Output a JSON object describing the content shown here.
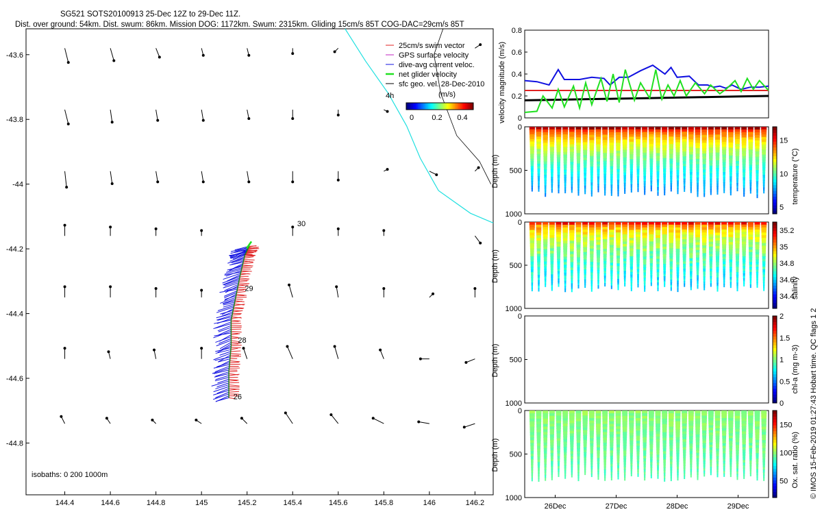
{
  "title": {
    "line1": "SG521 SOTS20100913 25-Dec 12Z to 29-Dec 11Z.",
    "line2": "Dist. over ground: 54km. Dist. swum: 86km. Mission DOG: 1172km. Swum: 2315km. Gliding 15cm/s 85T COG-DAC=29cm/s 85T"
  },
  "credit": "© IMOS 15-Feb-2019 01:27:43 Hobart time. QC flags 1  2",
  "colors": {
    "swim": "#e02020",
    "gps": "#c020c0",
    "dac": "#1010e0",
    "net": "#20e020",
    "geo": "#000000",
    "track": "#20e0e0",
    "axis": "#000000"
  },
  "chart_data": [
    {
      "type": "scatter",
      "id": "map",
      "title": "",
      "xlabel": "",
      "ylabel": "",
      "xlim": [
        144.23,
        146.28
      ],
      "ylim": [
        -44.96,
        -43.52
      ],
      "x_ticks": [
        "144.4",
        "144.6",
        "144.8",
        "145",
        "145.2",
        "145.4",
        "145.6",
        "145.8",
        "146",
        "146.2"
      ],
      "y_ticks": [
        "-43.6",
        "-43.8",
        "-44",
        "-44.2",
        "-44.4",
        "-44.6",
        "-44.8"
      ],
      "legend": {
        "position": "top-right",
        "items": [
          "25cm/s swim vector",
          "GPS surface velocity",
          "dive-avg current veloc.",
          "net glider velocity",
          "sfc geo. vel. 28-Dec-2010"
        ],
        "scale_label": "4h",
        "colorbar_title": "(m/s)",
        "colorbar_ticks": [
          "0",
          "0.2",
          "0.4"
        ]
      },
      "isobath_note": "isobaths: 0   200   1000m",
      "labels": [
        {
          "text": "30",
          "lon": 145.42,
          "lat": -44.13
        },
        {
          "text": "29",
          "lon": 145.19,
          "lat": -44.33
        },
        {
          "text": "28",
          "lon": 145.16,
          "lat": -44.49
        },
        {
          "text": "26",
          "lon": 145.14,
          "lat": -44.665
        }
      ],
      "track": [
        [
          145.12,
          -44.66
        ],
        [
          145.12,
          -44.58
        ],
        [
          145.13,
          -44.5
        ],
        [
          145.13,
          -44.42
        ],
        [
          145.15,
          -44.35
        ],
        [
          145.17,
          -44.28
        ],
        [
          145.19,
          -44.22
        ],
        [
          145.21,
          -44.19
        ]
      ],
      "geo_vectors": [
        {
          "lon": 144.4,
          "lat": -43.58,
          "u": 0.02,
          "v": -0.08
        },
        {
          "lon": 144.6,
          "lat": -43.58,
          "u": 0.02,
          "v": -0.07
        },
        {
          "lon": 144.8,
          "lat": -43.58,
          "u": 0.02,
          "v": -0.05
        },
        {
          "lon": 145.0,
          "lat": -43.58,
          "u": 0.01,
          "v": -0.04
        },
        {
          "lon": 145.2,
          "lat": -43.58,
          "u": 0.01,
          "v": -0.04
        },
        {
          "lon": 145.4,
          "lat": -43.58,
          "u": 0.0,
          "v": -0.03
        },
        {
          "lon": 145.6,
          "lat": -43.58,
          "u": -0.02,
          "v": -0.02
        },
        {
          "lon": 146.2,
          "lat": -43.58,
          "u": 0.03,
          "v": 0.02
        },
        {
          "lon": 144.4,
          "lat": -43.77,
          "u": 0.02,
          "v": -0.08
        },
        {
          "lon": 144.6,
          "lat": -43.77,
          "u": 0.01,
          "v": -0.07
        },
        {
          "lon": 144.8,
          "lat": -43.77,
          "u": 0.01,
          "v": -0.06
        },
        {
          "lon": 145.0,
          "lat": -43.77,
          "u": 0.01,
          "v": -0.06
        },
        {
          "lon": 145.2,
          "lat": -43.77,
          "u": 0.01,
          "v": -0.05
        },
        {
          "lon": 145.4,
          "lat": -43.77,
          "u": 0.0,
          "v": -0.05
        },
        {
          "lon": 145.6,
          "lat": -43.77,
          "u": 0.0,
          "v": -0.03
        },
        {
          "lon": 145.8,
          "lat": -43.77,
          "u": 0.02,
          "v": -0.01
        },
        {
          "lon": 144.4,
          "lat": -43.96,
          "u": 0.01,
          "v": -0.09
        },
        {
          "lon": 144.6,
          "lat": -43.96,
          "u": 0.01,
          "v": -0.07
        },
        {
          "lon": 144.8,
          "lat": -43.96,
          "u": 0.01,
          "v": -0.06
        },
        {
          "lon": 145.0,
          "lat": -43.96,
          "u": 0.01,
          "v": -0.06
        },
        {
          "lon": 145.2,
          "lat": -43.96,
          "u": 0.01,
          "v": -0.06
        },
        {
          "lon": 145.4,
          "lat": -43.96,
          "u": 0.0,
          "v": -0.06
        },
        {
          "lon": 145.6,
          "lat": -43.96,
          "u": 0.0,
          "v": -0.05
        },
        {
          "lon": 145.8,
          "lat": -43.96,
          "u": 0.02,
          "v": 0.01
        },
        {
          "lon": 146.0,
          "lat": -43.96,
          "u": 0.04,
          "v": -0.02
        },
        {
          "lon": 146.2,
          "lat": -43.96,
          "u": 0.02,
          "v": 0.02
        },
        {
          "lon": 144.4,
          "lat": -44.16,
          "u": 0.0,
          "v": 0.06
        },
        {
          "lon": 144.6,
          "lat": -44.16,
          "u": 0.0,
          "v": 0.05
        },
        {
          "lon": 144.8,
          "lat": -44.16,
          "u": 0.0,
          "v": 0.04
        },
        {
          "lon": 145.0,
          "lat": -44.16,
          "u": 0.0,
          "v": 0.03
        },
        {
          "lon": 145.4,
          "lat": -44.16,
          "u": 0.0,
          "v": 0.05
        },
        {
          "lon": 145.6,
          "lat": -44.16,
          "u": 0.0,
          "v": 0.04
        },
        {
          "lon": 145.8,
          "lat": -44.16,
          "u": 0.0,
          "v": 0.03
        },
        {
          "lon": 146.2,
          "lat": -44.16,
          "u": 0.03,
          "v": -0.04
        },
        {
          "lon": 144.4,
          "lat": -44.35,
          "u": 0.0,
          "v": 0.06
        },
        {
          "lon": 144.6,
          "lat": -44.35,
          "u": 0.0,
          "v": 0.06
        },
        {
          "lon": 144.8,
          "lat": -44.35,
          "u": 0.0,
          "v": 0.05
        },
        {
          "lon": 145.0,
          "lat": -44.35,
          "u": 0.0,
          "v": 0.04
        },
        {
          "lon": 145.4,
          "lat": -44.35,
          "u": -0.02,
          "v": 0.07
        },
        {
          "lon": 145.6,
          "lat": -44.35,
          "u": -0.01,
          "v": 0.06
        },
        {
          "lon": 145.8,
          "lat": -44.35,
          "u": 0.0,
          "v": 0.05
        },
        {
          "lon": 146.0,
          "lat": -44.35,
          "u": 0.02,
          "v": 0.02
        },
        {
          "lon": 146.2,
          "lat": -44.35,
          "u": 0.0,
          "v": 0.05
        },
        {
          "lon": 144.4,
          "lat": -44.54,
          "u": 0.0,
          "v": 0.06
        },
        {
          "lon": 144.6,
          "lat": -44.54,
          "u": -0.01,
          "v": 0.04
        },
        {
          "lon": 144.8,
          "lat": -44.54,
          "u": -0.01,
          "v": 0.05
        },
        {
          "lon": 145.0,
          "lat": -44.54,
          "u": 0.0,
          "v": 0.06
        },
        {
          "lon": 145.2,
          "lat": -44.54,
          "u": -0.02,
          "v": 0.06
        },
        {
          "lon": 145.4,
          "lat": -44.54,
          "u": -0.03,
          "v": 0.07
        },
        {
          "lon": 145.6,
          "lat": -44.54,
          "u": -0.02,
          "v": 0.07
        },
        {
          "lon": 145.8,
          "lat": -44.54,
          "u": -0.02,
          "v": 0.05
        },
        {
          "lon": 146.0,
          "lat": -44.54,
          "u": -0.05,
          "v": 0.0
        },
        {
          "lon": 146.2,
          "lat": -44.54,
          "u": -0.05,
          "v": -0.02
        },
        {
          "lon": 144.4,
          "lat": -44.74,
          "u": -0.02,
          "v": 0.04
        },
        {
          "lon": 144.6,
          "lat": -44.74,
          "u": -0.02,
          "v": 0.03
        },
        {
          "lon": 144.8,
          "lat": -44.74,
          "u": -0.02,
          "v": 0.02
        },
        {
          "lon": 145.0,
          "lat": -44.74,
          "u": -0.03,
          "v": 0.02
        },
        {
          "lon": 145.2,
          "lat": -44.74,
          "u": -0.03,
          "v": 0.03
        },
        {
          "lon": 145.4,
          "lat": -44.74,
          "u": -0.04,
          "v": 0.06
        },
        {
          "lon": 145.6,
          "lat": -44.74,
          "u": -0.04,
          "v": 0.05
        },
        {
          "lon": 145.8,
          "lat": -44.74,
          "u": -0.06,
          "v": 0.03
        },
        {
          "lon": 146.0,
          "lat": -44.74,
          "u": -0.06,
          "v": 0.01
        },
        {
          "lon": 146.2,
          "lat": -44.74,
          "u": -0.06,
          "v": -0.02
        }
      ]
    },
    {
      "type": "line",
      "id": "velocity",
      "ylabel": "velocity magnitude (m/s)",
      "ylim": [
        0,
        0.8
      ],
      "y_ticks": [
        "0",
        "0.2",
        "0.4",
        "0.6",
        "0.8"
      ],
      "x_range_days": [
        25.5,
        29.5
      ],
      "series": [
        {
          "name": "swim",
          "color": "#e02020",
          "x": [
            25.5,
            29.5
          ],
          "y": [
            0.25,
            0.25
          ]
        },
        {
          "name": "sfc geo",
          "color": "#000000",
          "x": [
            25.5,
            26.0,
            26.5,
            27.0,
            27.5,
            28.0,
            28.5,
            29.0,
            29.5
          ],
          "y": [
            0.16,
            0.165,
            0.17,
            0.175,
            0.18,
            0.185,
            0.19,
            0.195,
            0.2
          ]
        },
        {
          "name": "dive-avg current",
          "color": "#1010e0",
          "x": [
            25.5,
            25.7,
            25.9,
            26.05,
            26.15,
            26.4,
            26.6,
            26.8,
            26.9,
            27.05,
            27.2,
            27.4,
            27.6,
            27.8,
            27.9,
            28.0,
            28.2,
            28.35,
            28.5,
            28.6,
            28.7,
            28.8,
            28.9,
            29.05,
            29.2,
            29.35,
            29.5
          ],
          "y": [
            0.34,
            0.33,
            0.3,
            0.44,
            0.35,
            0.35,
            0.37,
            0.36,
            0.3,
            0.37,
            0.37,
            0.43,
            0.48,
            0.4,
            0.46,
            0.37,
            0.38,
            0.3,
            0.3,
            0.28,
            0.29,
            0.27,
            0.3,
            0.26,
            0.28,
            0.28,
            0.29
          ]
        },
        {
          "name": "net glider",
          "color": "#20e020",
          "x": [
            25.5,
            25.7,
            25.8,
            25.95,
            26.05,
            26.15,
            26.3,
            26.4,
            26.5,
            26.6,
            26.75,
            26.85,
            26.95,
            27.05,
            27.15,
            27.3,
            27.4,
            27.55,
            27.65,
            27.75,
            27.85,
            27.95,
            28.05,
            28.15,
            28.3,
            28.45,
            28.55,
            28.7,
            28.8,
            28.95,
            29.05,
            29.15,
            29.25,
            29.35,
            29.5
          ],
          "y": [
            0.05,
            0.06,
            0.2,
            0.09,
            0.26,
            0.1,
            0.29,
            0.09,
            0.32,
            0.12,
            0.36,
            0.15,
            0.4,
            0.14,
            0.44,
            0.16,
            0.32,
            0.18,
            0.44,
            0.17,
            0.3,
            0.2,
            0.34,
            0.2,
            0.32,
            0.22,
            0.3,
            0.22,
            0.26,
            0.34,
            0.24,
            0.36,
            0.26,
            0.34,
            0.25
          ]
        }
      ]
    },
    {
      "type": "scatter",
      "id": "temperature",
      "ylabel": "Depth (m)",
      "colorbar_label": "temperature (°C)",
      "ylim": [
        1000,
        0
      ],
      "y_ticks": [
        "0",
        "500",
        "1000"
      ],
      "colorbar_ticks": [
        "5",
        "10",
        "15"
      ],
      "colorbar_range": [
        4,
        17
      ],
      "dive_count": 36,
      "max_depth": 780,
      "surface_value": 16.5,
      "deep_value": 7.5,
      "has_data": true
    },
    {
      "type": "scatter",
      "id": "salinity",
      "ylabel": "Depth (m)",
      "colorbar_label": "salinity",
      "ylim": [
        1000,
        0
      ],
      "y_ticks": [
        "0",
        "500",
        "1000"
      ],
      "colorbar_ticks": [
        "34.4",
        "34.6",
        "34.8",
        "35",
        "35.2"
      ],
      "colorbar_range": [
        34.25,
        35.3
      ],
      "dive_count": 36,
      "max_depth": 780,
      "surface_value": 35.15,
      "deep_value": 34.6,
      "has_data": true
    },
    {
      "type": "scatter",
      "id": "chla",
      "ylabel": "Depth (m)",
      "colorbar_label": "chl-a (mg m-3)",
      "ylim": [
        1000,
        0
      ],
      "y_ticks": [
        "0",
        "500",
        "1000"
      ],
      "colorbar_ticks": [
        "0",
        "0.5",
        "1",
        "1.5",
        "2"
      ],
      "colorbar_range": [
        0,
        2
      ],
      "dive_count": 0,
      "has_data": false
    },
    {
      "type": "scatter",
      "id": "oxygen",
      "ylabel": "Depth (m)",
      "colorbar_label": "Ox. sat. ratio (%)",
      "ylim": [
        1000,
        0
      ],
      "y_ticks": [
        "0",
        "500",
        "1000"
      ],
      "colorbar_ticks": [
        "50",
        "100",
        "150"
      ],
      "colorbar_range": [
        20,
        175
      ],
      "dive_count": 36,
      "max_depth": 780,
      "surface_value": 100,
      "deep_value": 90,
      "has_data": true,
      "x_ticks": [
        "26Dec",
        "27Dec",
        "28Dec",
        "29Dec"
      ]
    }
  ]
}
